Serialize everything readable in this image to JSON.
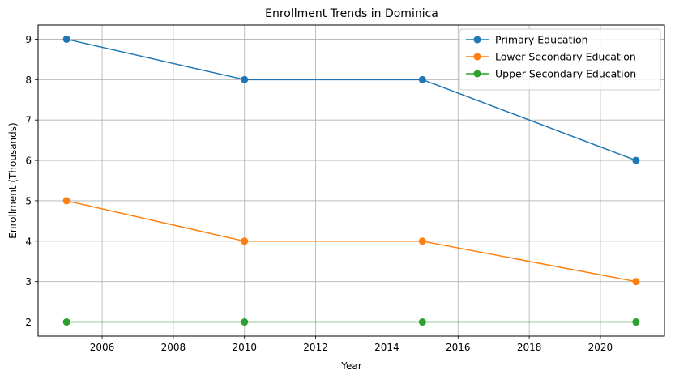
{
  "chart_data": {
    "type": "line",
    "title": "Enrollment Trends in Dominica",
    "xlabel": "Year",
    "ylabel": "Enrollment (Thousands)",
    "x": [
      2005,
      2010,
      2015,
      2021
    ],
    "xlim": [
      2004.2,
      2021.8
    ],
    "ylim": [
      1.65,
      9.35
    ],
    "xticks": [
      2006,
      2008,
      2010,
      2012,
      2014,
      2016,
      2018,
      2020
    ],
    "yticks": [
      2,
      3,
      4,
      5,
      6,
      7,
      8,
      9
    ],
    "grid": true,
    "legend_position": "top-right",
    "series": [
      {
        "name": "Primary Education",
        "color": "#1f77b4",
        "values": [
          9,
          8,
          8,
          6
        ]
      },
      {
        "name": "Lower Secondary Education",
        "color": "#ff7f0e",
        "values": [
          5,
          4,
          4,
          3
        ]
      },
      {
        "name": "Upper Secondary Education",
        "color": "#2ca02c",
        "values": [
          2,
          2,
          2,
          2
        ]
      }
    ]
  }
}
